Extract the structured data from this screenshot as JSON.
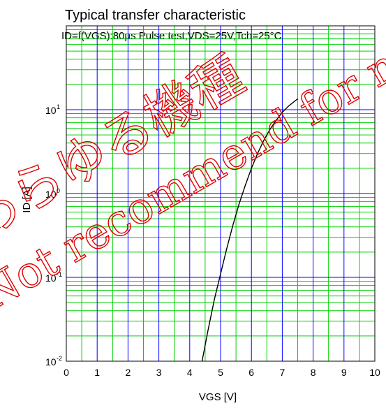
{
  "chart_data": {
    "type": "line",
    "title": "Typical transfer characteristic",
    "subtitle": "ID=f(VGS):80µs Pulse test,VDS=25V,Tch=25°C",
    "xlabel": "VGS [V]",
    "ylabel": "ID [A]",
    "x_scale": "linear",
    "y_scale": "log",
    "xlim": [
      0,
      10
    ],
    "ylim": [
      0.01,
      100
    ],
    "x_ticks": [
      "0",
      "1",
      "2",
      "3",
      "4",
      "5",
      "6",
      "7",
      "8",
      "9",
      "10"
    ],
    "y_ticks": [
      {
        "value": 0.01,
        "base": "10",
        "exp": "-2"
      },
      {
        "value": 0.1,
        "base": "10",
        "exp": "-1"
      },
      {
        "value": 1,
        "base": "10",
        "exp": "0"
      },
      {
        "value": 10,
        "base": "10",
        "exp": "1"
      }
    ],
    "grid": true,
    "series": [
      {
        "x": [
          4.4,
          4.6,
          4.8,
          5.0,
          5.2,
          5.4,
          5.6,
          5.8,
          6.0,
          6.2,
          6.4,
          6.6,
          6.8,
          7.0,
          7.2,
          7.5
        ],
        "y": [
          0.01,
          0.024,
          0.055,
          0.11,
          0.22,
          0.42,
          0.75,
          1.25,
          2.0,
          3.0,
          4.3,
          5.8,
          7.5,
          9.3,
          11.0,
          13.5
        ]
      }
    ]
  },
  "watermark": {
    "text": "あらゆる機種",
    "text2": "Not recommend for new design."
  },
  "colors": {
    "major_grid": "#0000ff",
    "minor_grid": "#00d000",
    "curve": "#000000",
    "watermark": "#e00000"
  }
}
